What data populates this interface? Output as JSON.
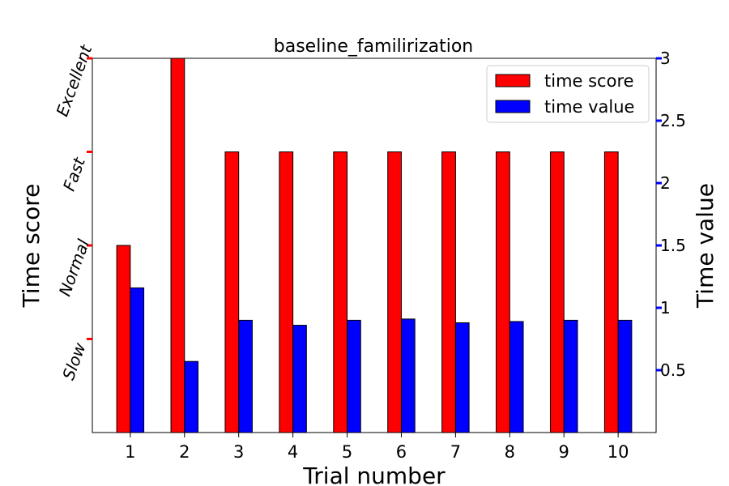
{
  "chart_data": {
    "type": "bar",
    "title": "baseline_familirization",
    "xlabel": "Trial number",
    "ylabel_left": "Time score",
    "ylabel_right": "Time value",
    "categories": [
      "1",
      "2",
      "3",
      "4",
      "5",
      "6",
      "7",
      "8",
      "9",
      "10"
    ],
    "series": [
      {
        "name": "time score",
        "color": "#ff0000",
        "axis": "left",
        "values": [
          2.0,
          4.0,
          3.0,
          3.0,
          3.0,
          3.0,
          3.0,
          3.0,
          3.0,
          3.0
        ]
      },
      {
        "name": "time value",
        "color": "#0000ff",
        "axis": "right",
        "values": [
          1.16,
          0.57,
          0.9,
          0.86,
          0.9,
          0.91,
          0.88,
          0.89,
          0.9,
          0.9
        ]
      }
    ],
    "left_axis": {
      "ylim": [
        0,
        4
      ],
      "ticks": [
        {
          "value": 1,
          "label": "Slow"
        },
        {
          "value": 2,
          "label": "Normal"
        },
        {
          "value": 3,
          "label": "Fast"
        },
        {
          "value": 4,
          "label": "Excellent"
        }
      ],
      "tick_color": "#ff0000"
    },
    "right_axis": {
      "ylim": [
        0,
        3
      ],
      "ticks": [
        {
          "value": 0.5,
          "label": "0.5"
        },
        {
          "value": 1,
          "label": "1"
        },
        {
          "value": 1.5,
          "label": "1.5"
        },
        {
          "value": 2,
          "label": "2"
        },
        {
          "value": 2.5,
          "label": "2.5"
        },
        {
          "value": 3,
          "label": "3"
        }
      ],
      "tick_color": "#0000ff"
    },
    "legend": {
      "position": "top-right"
    },
    "grid": false
  }
}
